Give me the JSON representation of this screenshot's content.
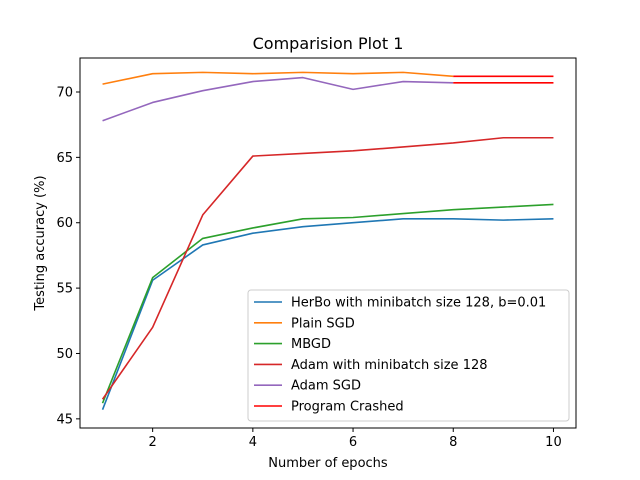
{
  "chart_data": {
    "type": "line",
    "title": "Comparision Plot 1",
    "xlabel": "Number of epochs",
    "ylabel": "Testing accuracy (%)",
    "xlim": [
      0.55,
      10.45
    ],
    "ylim": [
      44.3,
      72.6
    ],
    "x_ticks": [
      2,
      4,
      6,
      8,
      10
    ],
    "y_ticks": [
      45,
      50,
      55,
      60,
      65,
      70
    ],
    "grid": false,
    "legend_position": "lower right",
    "series": [
      {
        "name": "HerBo with minibatch size 128, b=0.01",
        "color": "#1f77b4",
        "x": [
          1,
          2,
          3,
          4,
          5,
          6,
          7,
          8,
          9,
          10
        ],
        "y": [
          45.7,
          55.6,
          58.3,
          59.2,
          59.7,
          60.0,
          60.3,
          60.3,
          60.2,
          60.3
        ]
      },
      {
        "name": "Plain SGD",
        "color": "#ff7f0e",
        "x": [
          1,
          2,
          3,
          4,
          5,
          6,
          7,
          8
        ],
        "y": [
          70.6,
          71.4,
          71.5,
          71.4,
          71.5,
          71.4,
          71.5,
          71.2
        ]
      },
      {
        "name": "MBGD",
        "color": "#2ca02c",
        "x": [
          1,
          2,
          3,
          4,
          5,
          6,
          7,
          8,
          9,
          10
        ],
        "y": [
          46.2,
          55.8,
          58.8,
          59.6,
          60.3,
          60.4,
          60.7,
          61.0,
          61.2,
          61.4
        ]
      },
      {
        "name": "Adam with minibatch size 128",
        "color": "#d62728",
        "x": [
          1,
          2,
          3,
          4,
          5,
          6,
          7,
          8,
          9,
          10
        ],
        "y": [
          46.5,
          52.0,
          60.6,
          65.1,
          65.3,
          65.5,
          65.8,
          66.1,
          66.5,
          66.5
        ]
      },
      {
        "name": "Adam SGD",
        "color": "#9467bd",
        "x": [
          1,
          2,
          3,
          4,
          5,
          6,
          7,
          8
        ],
        "y": [
          67.8,
          69.2,
          70.1,
          70.8,
          71.1,
          70.2,
          70.8,
          70.7
        ]
      },
      {
        "name": "Program Crashed",
        "color": "#ff0000",
        "segments": [
          {
            "x": [
              8,
              10
            ],
            "y": [
              71.2,
              71.2
            ]
          },
          {
            "x": [
              8,
              10
            ],
            "y": [
              70.7,
              70.7
            ]
          }
        ]
      }
    ]
  }
}
